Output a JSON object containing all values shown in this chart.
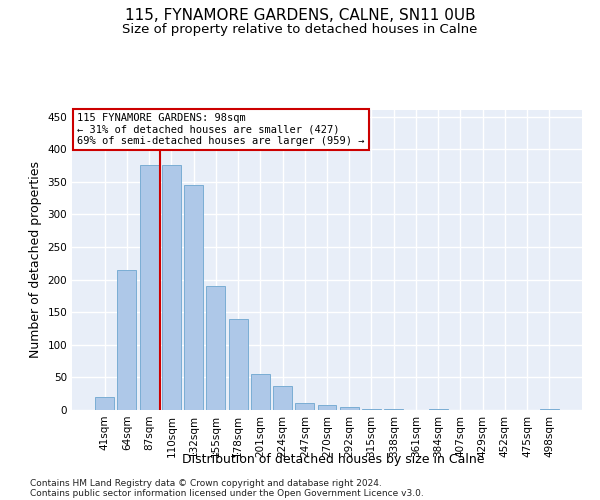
{
  "title": "115, FYNAMORE GARDENS, CALNE, SN11 0UB",
  "subtitle": "Size of property relative to detached houses in Calne",
  "xlabel": "Distribution of detached houses by size in Calne",
  "ylabel": "Number of detached properties",
  "categories": [
    "41sqm",
    "64sqm",
    "87sqm",
    "110sqm",
    "132sqm",
    "155sqm",
    "178sqm",
    "201sqm",
    "224sqm",
    "247sqm",
    "270sqm",
    "292sqm",
    "315sqm",
    "338sqm",
    "361sqm",
    "384sqm",
    "407sqm",
    "429sqm",
    "452sqm",
    "475sqm",
    "498sqm"
  ],
  "values": [
    20,
    215,
    375,
    375,
    345,
    190,
    140,
    55,
    37,
    10,
    7,
    5,
    2,
    1,
    0,
    2,
    0,
    0,
    0,
    0,
    2
  ],
  "bar_color": "#aec8e8",
  "bar_edge_color": "#7aadd4",
  "bar_width": 0.85,
  "vline_color": "#cc0000",
  "annotation_text": "115 FYNAMORE GARDENS: 98sqm\n← 31% of detached houses are smaller (427)\n69% of semi-detached houses are larger (959) →",
  "annotation_box_color": "#ffffff",
  "annotation_box_edge": "#cc0000",
  "ylim": [
    0,
    460
  ],
  "yticks": [
    0,
    50,
    100,
    150,
    200,
    250,
    300,
    350,
    400,
    450
  ],
  "footnote1": "Contains HM Land Registry data © Crown copyright and database right 2024.",
  "footnote2": "Contains public sector information licensed under the Open Government Licence v3.0.",
  "bg_color": "#e8eef8",
  "fig_bg_color": "#ffffff",
  "grid_color": "#ffffff",
  "title_fontsize": 11,
  "subtitle_fontsize": 9.5,
  "axis_label_fontsize": 9,
  "tick_fontsize": 7.5,
  "footnote_fontsize": 6.5,
  "annotation_fontsize": 7.5
}
